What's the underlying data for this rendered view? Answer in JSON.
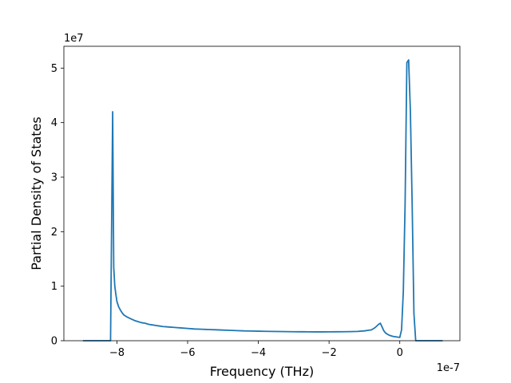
{
  "chart_data": {
    "type": "line",
    "title": "",
    "xlabel": "Frequency (THz)",
    "ylabel": "Partial Density of States",
    "x_offset_label": "1e-7",
    "y_offset_label": "1e7",
    "xlim": [
      -9.5,
      1.7
    ],
    "ylim": [
      0,
      5.4
    ],
    "xticks": [
      -8,
      -6,
      -4,
      -2,
      0
    ],
    "xtick_labels": [
      "−8",
      "−6",
      "−4",
      "−2",
      "0"
    ],
    "yticks": [
      0,
      1,
      2,
      3,
      4,
      5
    ],
    "ytick_labels": [
      "0",
      "1",
      "2",
      "3",
      "4",
      "5"
    ],
    "grid": false,
    "legend": "none",
    "colors": {
      "series": "#1f77b4"
    },
    "series": [
      {
        "x": [
          -8.95,
          -8.6,
          -8.3,
          -8.18,
          -8.15,
          -8.12,
          -8.09,
          -8.06,
          -8.03,
          -8.0,
          -7.95,
          -7.9,
          -7.85,
          -7.8,
          -7.7,
          -7.6,
          -7.5,
          -7.4,
          -7.3,
          -7.2,
          -7.1,
          -7.0,
          -6.9,
          -6.8,
          -6.7,
          -6.6,
          -6.5,
          -6.4,
          -6.3,
          -6.2,
          -6.0,
          -5.8,
          -5.6,
          -5.4,
          -5.2,
          -5.0,
          -4.8,
          -4.6,
          -4.4,
          -4.2,
          -4.0,
          -3.8,
          -3.6,
          -3.4,
          -3.2,
          -3.0,
          -2.8,
          -2.6,
          -2.4,
          -2.2,
          -2.0,
          -1.8,
          -1.6,
          -1.4,
          -1.2,
          -1.0,
          -0.9,
          -0.8,
          -0.7,
          -0.6,
          -0.55,
          -0.5,
          -0.45,
          -0.4,
          -0.3,
          -0.2,
          -0.1,
          0.0,
          0.05,
          0.1,
          0.15,
          0.2,
          0.25,
          0.3,
          0.35,
          0.4,
          0.45,
          0.6,
          0.9,
          1.2
        ],
        "y": [
          0,
          0,
          0,
          0,
          2.1,
          4.2,
          1.35,
          1.0,
          0.85,
          0.72,
          0.62,
          0.56,
          0.51,
          0.47,
          0.43,
          0.4,
          0.37,
          0.35,
          0.33,
          0.32,
          0.3,
          0.29,
          0.28,
          0.27,
          0.26,
          0.255,
          0.25,
          0.245,
          0.24,
          0.235,
          0.225,
          0.215,
          0.21,
          0.205,
          0.2,
          0.195,
          0.19,
          0.185,
          0.18,
          0.178,
          0.175,
          0.172,
          0.17,
          0.168,
          0.166,
          0.165,
          0.164,
          0.163,
          0.162,
          0.162,
          0.163,
          0.164,
          0.165,
          0.167,
          0.17,
          0.18,
          0.19,
          0.2,
          0.24,
          0.3,
          0.32,
          0.25,
          0.18,
          0.14,
          0.1,
          0.08,
          0.07,
          0.06,
          0.2,
          0.9,
          2.5,
          5.1,
          5.15,
          4.2,
          2.5,
          0.5,
          0,
          0,
          0,
          0
        ]
      }
    ]
  }
}
